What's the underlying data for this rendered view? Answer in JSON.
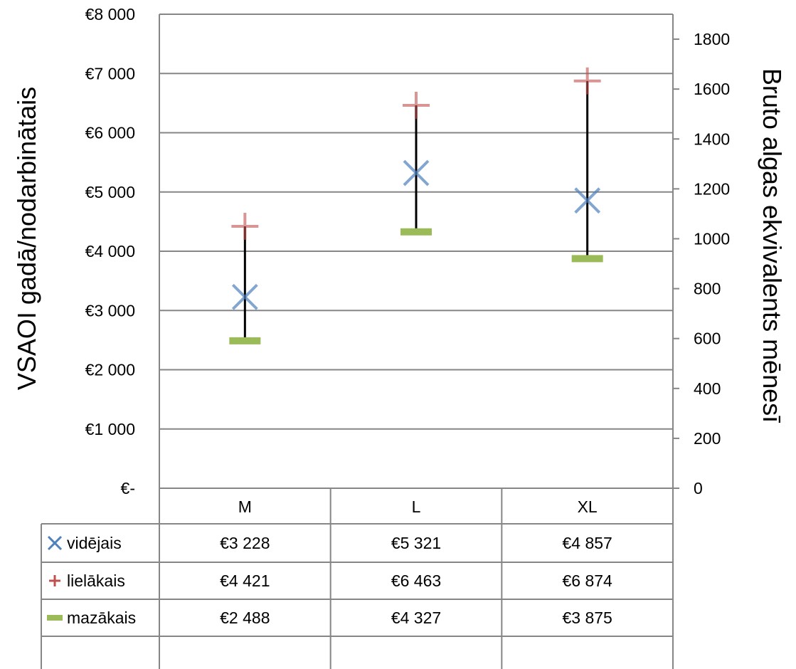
{
  "chart_data": {
    "type": "table",
    "title": "",
    "categories": [
      "M",
      "L",
      "XL"
    ],
    "ylabel_left": "VSAOI gadā/nodarbinātais",
    "ylabel_right": "Bruto algas ekvivalents mēnesī",
    "ylim_left": [
      0,
      8000
    ],
    "ylim_right": [
      0,
      1900
    ],
    "yticks_left": [
      "€-",
      "€1 000",
      "€2 000",
      "€3 000",
      "€4 000",
      "€5 000",
      "€6 000",
      "€7 000",
      "€8 000"
    ],
    "yticks_right": [
      "0",
      "200",
      "400",
      "600",
      "800",
      "1000",
      "1200",
      "1400",
      "1600",
      "1800"
    ],
    "grid": true,
    "legend_position": "bottom data table",
    "series": [
      {
        "name": "vidējais",
        "marker": "x",
        "color": "#4f81bd",
        "values": [
          3228,
          5321,
          4857
        ],
        "labels": [
          "€3 228",
          "€5 321",
          "€4 857"
        ]
      },
      {
        "name": "lielākais",
        "marker": "plus",
        "color": "#c0504d",
        "values": [
          4421,
          6463,
          6874
        ],
        "labels": [
          "€4 421",
          "€6 463",
          "€6 874"
        ]
      },
      {
        "name": "mazākais",
        "marker": "dash",
        "color": "#9bbb59",
        "values": [
          2488,
          4327,
          3875
        ],
        "labels": [
          "€2 488",
          "€4 327",
          "€3 875"
        ]
      }
    ]
  }
}
